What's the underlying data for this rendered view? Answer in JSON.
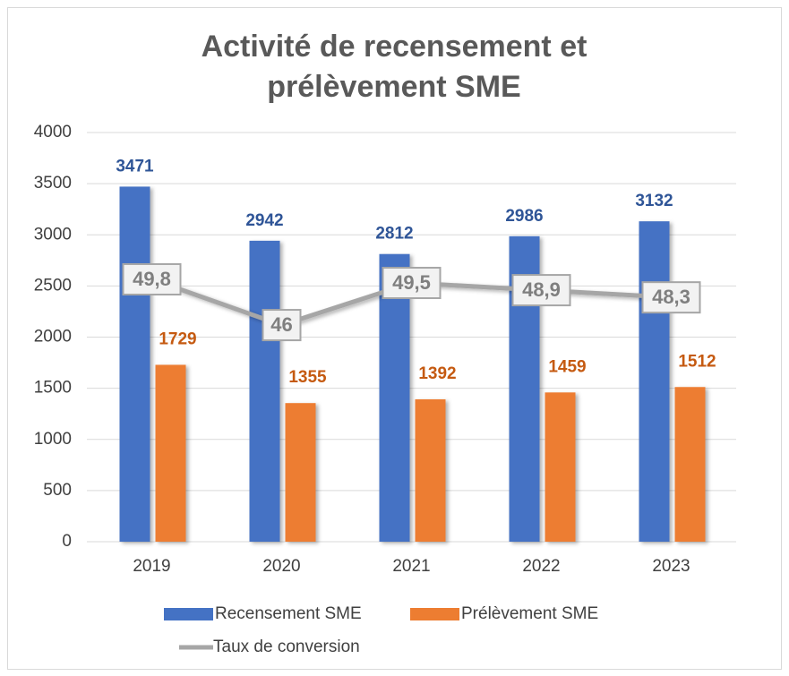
{
  "chart_data": {
    "type": "bar",
    "title": "Activité de recensement et prélèvement SME",
    "categories": [
      "2019",
      "2020",
      "2021",
      "2022",
      "2023"
    ],
    "series": [
      {
        "name": "Recensement SME",
        "color": "#4472c4",
        "values": [
          3471,
          2942,
          2812,
          2986,
          3132
        ]
      },
      {
        "name": "Prélèvement SME",
        "color": "#ed7d31",
        "values": [
          1729,
          1355,
          1392,
          1459,
          1512
        ]
      },
      {
        "name": "Taux de conversion",
        "type": "line",
        "axis": "y2",
        "color": "#a6a6a6",
        "values": [
          49.8,
          46,
          49.5,
          48.9,
          48.3
        ],
        "value_labels": [
          "49,8",
          "46",
          "49,5",
          "48,9",
          "48,3"
        ]
      }
    ],
    "ylim": [
      0,
      4000
    ],
    "yticks": [
      0,
      500,
      1000,
      1500,
      2000,
      2500,
      3000,
      3500,
      4000
    ],
    "y2lim": [
      28,
      62
    ],
    "grid": true,
    "legend": "bottom"
  }
}
